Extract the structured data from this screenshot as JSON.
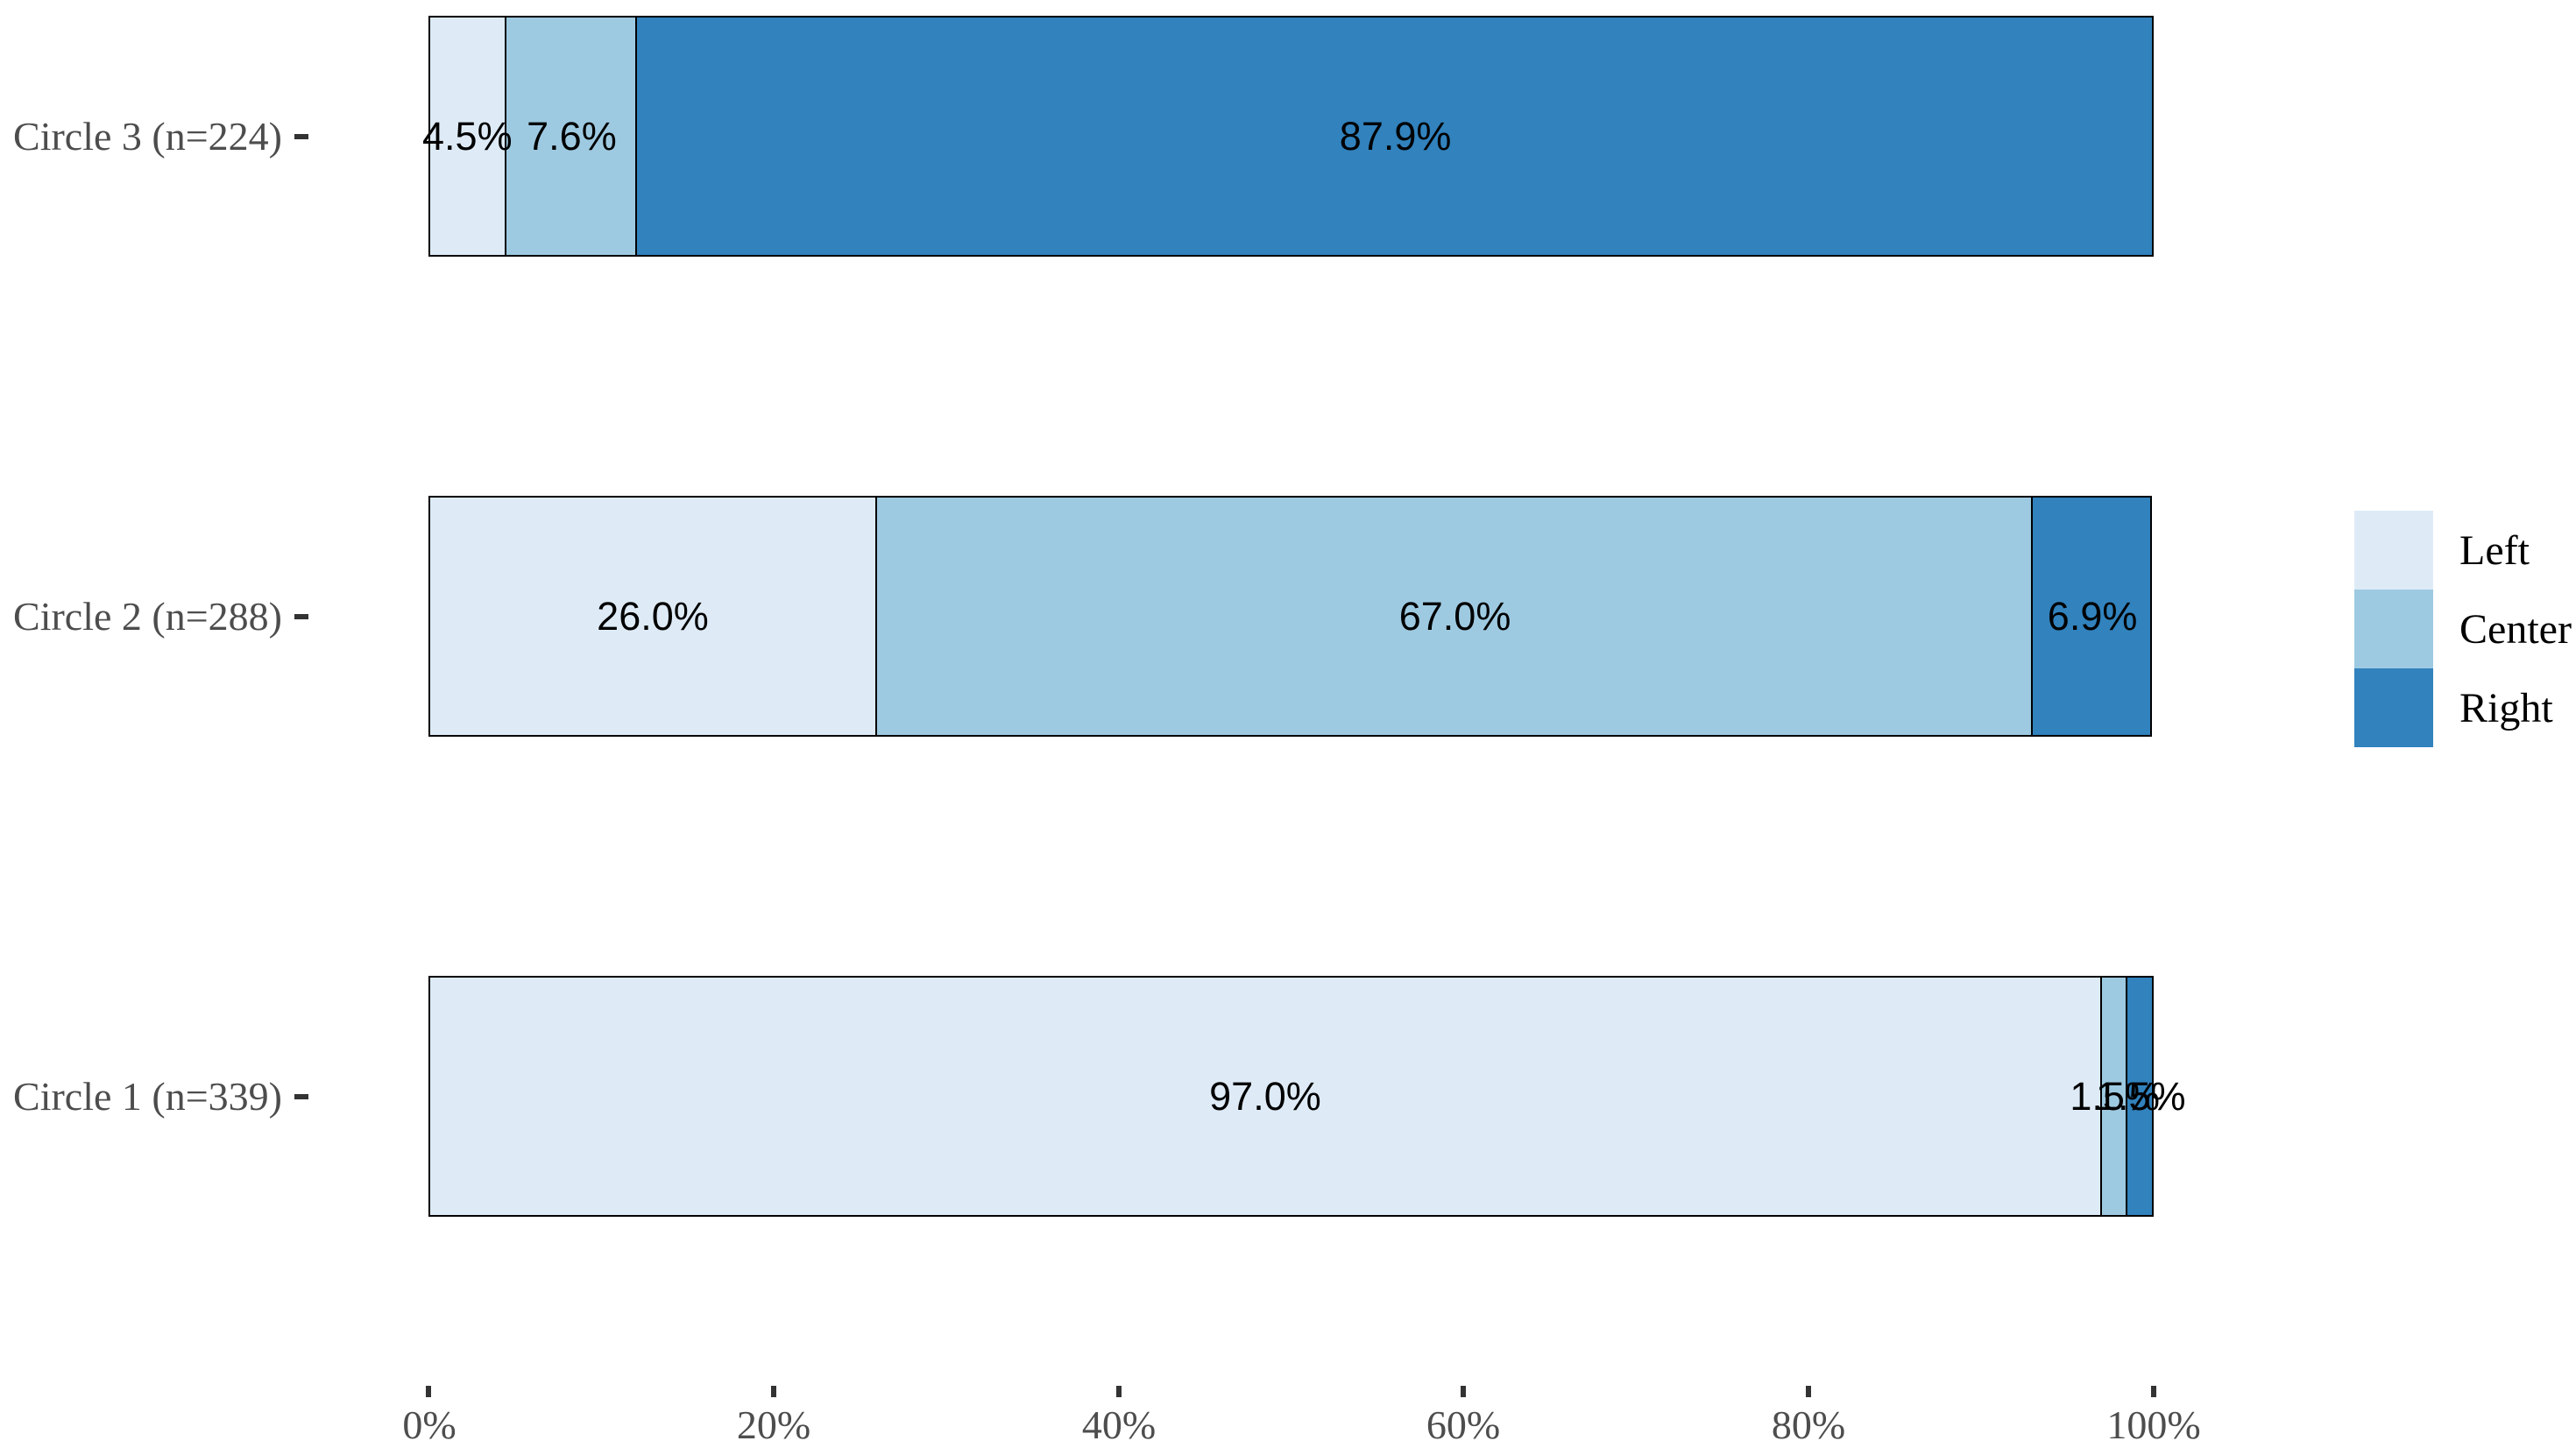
{
  "chart_data": {
    "type": "bar",
    "orientation": "horizontal",
    "stacked": true,
    "title": "",
    "xlabel": "",
    "ylabel": "",
    "xlim": [
      0,
      100
    ],
    "grid": false,
    "categories": [
      "Circle 3 (n=224)",
      "Circle 2 (n=288)",
      "Circle 1 (n=339)"
    ],
    "series": [
      {
        "name": "Left",
        "color": "#deebf7",
        "values": [
          4.5,
          26.0,
          97.0
        ]
      },
      {
        "name": "Center",
        "color": "#9ecae1",
        "values": [
          7.6,
          67.0,
          1.5
        ]
      },
      {
        "name": "Right",
        "color": "#3182bd",
        "values": [
          87.9,
          6.9,
          1.5
        ]
      }
    ],
    "labels": [
      [
        "4.5%",
        "7.6%",
        "87.9%"
      ],
      [
        "26.0%",
        "67.0%",
        "6.9%"
      ],
      [
        "97.0%",
        "1.5%",
        "1.5%"
      ]
    ],
    "x_ticks": [
      "0%",
      "20%",
      "40%",
      "60%",
      "80%",
      "100%"
    ],
    "legend": {
      "position": "right",
      "entries": [
        "Left",
        "Center",
        "Right"
      ]
    },
    "styles": {
      "segment_border_color": "#000000",
      "axis_text_color": "#4d4d4d",
      "tick_color": "#333333",
      "data_label_color": "#000000",
      "background": "#ffffff"
    }
  }
}
